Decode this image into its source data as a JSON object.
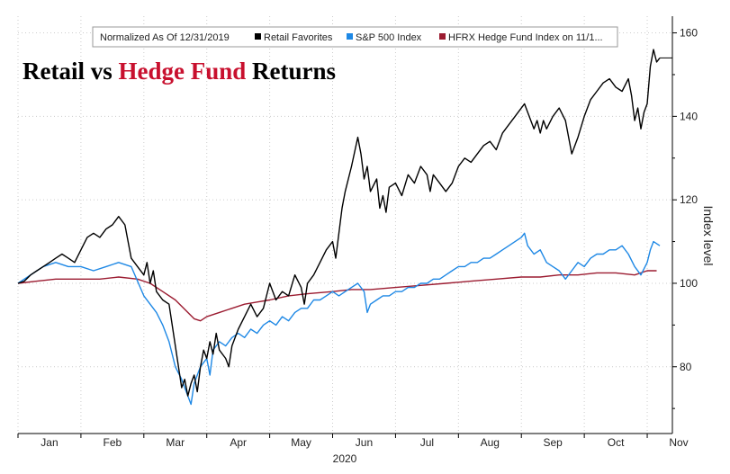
{
  "colors": {
    "retail": "#000000",
    "sp500": "#1e88e5",
    "hfrx": "#9b1b30",
    "title_accent": "#c8102e",
    "grid": "#cccccc"
  },
  "chart_data": {
    "type": "line",
    "title_parts": [
      {
        "text": "Retail vs ",
        "accent": false
      },
      {
        "text": "Hedge Fund",
        "accent": true
      },
      {
        "text": " Returns",
        "accent": false
      }
    ],
    "legend": {
      "note": "Normalized As Of 12/31/2019",
      "placement": "top-center"
    },
    "xlabel": "2020",
    "ylabel": "Index level",
    "x_range": [
      0,
      10.4
    ],
    "ylim": [
      64,
      164
    ],
    "y_ticks": [
      80,
      100,
      120,
      140,
      160
    ],
    "month_ticks": [
      {
        "label": "Jan",
        "x": 0.5
      },
      {
        "label": "Feb",
        "x": 1.5
      },
      {
        "label": "Mar",
        "x": 2.5
      },
      {
        "label": "Apr",
        "x": 3.5
      },
      {
        "label": "May",
        "x": 4.5
      },
      {
        "label": "Jun",
        "x": 5.5
      },
      {
        "label": "Jul",
        "x": 6.5
      },
      {
        "label": "Aug",
        "x": 7.5
      },
      {
        "label": "Sep",
        "x": 8.5
      },
      {
        "label": "Oct",
        "x": 9.5
      },
      {
        "label": "Nov",
        "x": 10.5
      }
    ],
    "grid": true,
    "series": [
      {
        "name": "Retail Favorites",
        "color_key": "retail",
        "last_value_marker": 154,
        "points": [
          [
            0,
            100
          ],
          [
            0.1,
            100.5
          ],
          [
            0.2,
            102
          ],
          [
            0.3,
            103
          ],
          [
            0.4,
            104
          ],
          [
            0.5,
            105
          ],
          [
            0.6,
            106
          ],
          [
            0.7,
            107
          ],
          [
            0.8,
            106
          ],
          [
            0.9,
            105
          ],
          [
            1.0,
            108
          ],
          [
            1.1,
            111
          ],
          [
            1.2,
            112
          ],
          [
            1.3,
            111
          ],
          [
            1.4,
            113
          ],
          [
            1.5,
            114
          ],
          [
            1.6,
            116
          ],
          [
            1.7,
            114
          ],
          [
            1.75,
            110
          ],
          [
            1.8,
            106
          ],
          [
            1.9,
            104
          ],
          [
            2.0,
            102
          ],
          [
            2.05,
            105
          ],
          [
            2.1,
            100
          ],
          [
            2.15,
            103
          ],
          [
            2.2,
            98
          ],
          [
            2.3,
            96
          ],
          [
            2.4,
            95
          ],
          [
            2.45,
            90
          ],
          [
            2.5,
            85
          ],
          [
            2.55,
            80
          ],
          [
            2.6,
            75
          ],
          [
            2.65,
            77
          ],
          [
            2.7,
            73
          ],
          [
            2.75,
            76
          ],
          [
            2.8,
            78
          ],
          [
            2.85,
            74
          ],
          [
            2.9,
            80
          ],
          [
            2.95,
            84
          ],
          [
            3.0,
            82
          ],
          [
            3.05,
            86
          ],
          [
            3.1,
            83
          ],
          [
            3.15,
            88
          ],
          [
            3.2,
            84
          ],
          [
            3.3,
            82
          ],
          [
            3.35,
            80
          ],
          [
            3.4,
            85
          ],
          [
            3.5,
            89
          ],
          [
            3.6,
            92
          ],
          [
            3.7,
            95
          ],
          [
            3.8,
            92
          ],
          [
            3.9,
            94
          ],
          [
            4.0,
            100
          ],
          [
            4.1,
            96
          ],
          [
            4.2,
            98
          ],
          [
            4.3,
            97
          ],
          [
            4.4,
            102
          ],
          [
            4.5,
            99
          ],
          [
            4.55,
            95
          ],
          [
            4.6,
            100
          ],
          [
            4.7,
            102
          ],
          [
            4.8,
            105
          ],
          [
            4.9,
            108
          ],
          [
            5.0,
            110
          ],
          [
            5.05,
            106
          ],
          [
            5.1,
            112
          ],
          [
            5.15,
            118
          ],
          [
            5.2,
            122
          ],
          [
            5.3,
            128
          ],
          [
            5.4,
            135
          ],
          [
            5.45,
            131
          ],
          [
            5.5,
            125
          ],
          [
            5.55,
            128
          ],
          [
            5.6,
            122
          ],
          [
            5.7,
            125
          ],
          [
            5.75,
            118
          ],
          [
            5.8,
            121
          ],
          [
            5.85,
            117
          ],
          [
            5.9,
            123
          ],
          [
            6.0,
            124
          ],
          [
            6.1,
            121
          ],
          [
            6.2,
            126
          ],
          [
            6.3,
            124
          ],
          [
            6.4,
            128
          ],
          [
            6.5,
            126
          ],
          [
            6.55,
            122
          ],
          [
            6.6,
            126
          ],
          [
            6.7,
            124
          ],
          [
            6.8,
            122
          ],
          [
            6.9,
            124
          ],
          [
            7.0,
            128
          ],
          [
            7.1,
            130
          ],
          [
            7.2,
            129
          ],
          [
            7.3,
            131
          ],
          [
            7.4,
            133
          ],
          [
            7.5,
            134
          ],
          [
            7.6,
            132
          ],
          [
            7.7,
            136
          ],
          [
            7.8,
            138
          ],
          [
            7.9,
            140
          ],
          [
            8.0,
            142
          ],
          [
            8.05,
            143
          ],
          [
            8.1,
            141
          ],
          [
            8.2,
            137
          ],
          [
            8.25,
            139
          ],
          [
            8.3,
            136
          ],
          [
            8.35,
            139
          ],
          [
            8.4,
            137
          ],
          [
            8.5,
            140
          ],
          [
            8.6,
            142
          ],
          [
            8.7,
            139
          ],
          [
            8.8,
            131
          ],
          [
            8.9,
            135
          ],
          [
            9.0,
            140
          ],
          [
            9.1,
            144
          ],
          [
            9.2,
            146
          ],
          [
            9.3,
            148
          ],
          [
            9.4,
            149
          ],
          [
            9.5,
            147
          ],
          [
            9.6,
            146
          ],
          [
            9.7,
            149
          ],
          [
            9.75,
            145
          ],
          [
            9.8,
            139
          ],
          [
            9.85,
            142
          ],
          [
            9.9,
            137
          ],
          [
            9.95,
            141
          ],
          [
            10.0,
            143
          ],
          [
            10.05,
            152
          ],
          [
            10.1,
            156
          ],
          [
            10.15,
            153
          ],
          [
            10.2,
            154
          ]
        ]
      },
      {
        "name": "S&P 500 Index",
        "color_key": "sp500",
        "last_value_marker": null,
        "points": [
          [
            0,
            100
          ],
          [
            0.2,
            102
          ],
          [
            0.4,
            104
          ],
          [
            0.6,
            105
          ],
          [
            0.8,
            104
          ],
          [
            1.0,
            104
          ],
          [
            1.2,
            103
          ],
          [
            1.4,
            104
          ],
          [
            1.6,
            105
          ],
          [
            1.8,
            104
          ],
          [
            2.0,
            97
          ],
          [
            2.1,
            95
          ],
          [
            2.2,
            93
          ],
          [
            2.3,
            90
          ],
          [
            2.4,
            86
          ],
          [
            2.5,
            80
          ],
          [
            2.6,
            77
          ],
          [
            2.7,
            73
          ],
          [
            2.75,
            71
          ],
          [
            2.8,
            76
          ],
          [
            2.85,
            78
          ],
          [
            2.9,
            80
          ],
          [
            3.0,
            82
          ],
          [
            3.05,
            78
          ],
          [
            3.1,
            84
          ],
          [
            3.2,
            86
          ],
          [
            3.3,
            85
          ],
          [
            3.4,
            87
          ],
          [
            3.5,
            88
          ],
          [
            3.6,
            87
          ],
          [
            3.7,
            89
          ],
          [
            3.8,
            88
          ],
          [
            3.9,
            90
          ],
          [
            4.0,
            91
          ],
          [
            4.1,
            90
          ],
          [
            4.2,
            92
          ],
          [
            4.3,
            91
          ],
          [
            4.4,
            93
          ],
          [
            4.5,
            94
          ],
          [
            4.6,
            94
          ],
          [
            4.7,
            96
          ],
          [
            4.8,
            96
          ],
          [
            4.9,
            97
          ],
          [
            5.0,
            98
          ],
          [
            5.1,
            97
          ],
          [
            5.2,
            98
          ],
          [
            5.3,
            99
          ],
          [
            5.4,
            100
          ],
          [
            5.5,
            98
          ],
          [
            5.55,
            93
          ],
          [
            5.6,
            95
          ],
          [
            5.7,
            96
          ],
          [
            5.8,
            97
          ],
          [
            5.9,
            97
          ],
          [
            6.0,
            98
          ],
          [
            6.1,
            98
          ],
          [
            6.2,
            99
          ],
          [
            6.3,
            99
          ],
          [
            6.4,
            100
          ],
          [
            6.5,
            100
          ],
          [
            6.6,
            101
          ],
          [
            6.7,
            101
          ],
          [
            6.8,
            102
          ],
          [
            6.9,
            103
          ],
          [
            7.0,
            104
          ],
          [
            7.1,
            104
          ],
          [
            7.2,
            105
          ],
          [
            7.3,
            105
          ],
          [
            7.4,
            106
          ],
          [
            7.5,
            106
          ],
          [
            7.6,
            107
          ],
          [
            7.7,
            108
          ],
          [
            7.8,
            109
          ],
          [
            7.9,
            110
          ],
          [
            8.0,
            111
          ],
          [
            8.05,
            112
          ],
          [
            8.1,
            109
          ],
          [
            8.2,
            107
          ],
          [
            8.3,
            108
          ],
          [
            8.4,
            105
          ],
          [
            8.5,
            104
          ],
          [
            8.6,
            103
          ],
          [
            8.7,
            101
          ],
          [
            8.8,
            103
          ],
          [
            8.9,
            105
          ],
          [
            9.0,
            104
          ],
          [
            9.1,
            106
          ],
          [
            9.2,
            107
          ],
          [
            9.3,
            107
          ],
          [
            9.4,
            108
          ],
          [
            9.5,
            108
          ],
          [
            9.6,
            109
          ],
          [
            9.7,
            107
          ],
          [
            9.8,
            104
          ],
          [
            9.9,
            102
          ],
          [
            10.0,
            105
          ],
          [
            10.05,
            108
          ],
          [
            10.1,
            110
          ],
          [
            10.2,
            109
          ]
        ]
      },
      {
        "name": "HFRX Hedge Fund Index on 11/1...",
        "color_key": "hfrx",
        "last_value_marker": null,
        "points": [
          [
            0,
            100
          ],
          [
            0.3,
            100.5
          ],
          [
            0.6,
            101
          ],
          [
            1.0,
            101
          ],
          [
            1.3,
            101
          ],
          [
            1.6,
            101.5
          ],
          [
            1.9,
            101
          ],
          [
            2.1,
            100
          ],
          [
            2.3,
            98
          ],
          [
            2.5,
            96
          ],
          [
            2.7,
            93
          ],
          [
            2.8,
            91.5
          ],
          [
            2.9,
            91
          ],
          [
            3.0,
            92
          ],
          [
            3.2,
            93
          ],
          [
            3.4,
            94
          ],
          [
            3.6,
            95
          ],
          [
            3.8,
            95.5
          ],
          [
            4.0,
            96
          ],
          [
            4.3,
            97
          ],
          [
            4.6,
            97.5
          ],
          [
            5.0,
            98
          ],
          [
            5.3,
            98.5
          ],
          [
            5.6,
            98.5
          ],
          [
            6.0,
            99
          ],
          [
            6.4,
            99.5
          ],
          [
            6.8,
            100
          ],
          [
            7.2,
            100.5
          ],
          [
            7.6,
            101
          ],
          [
            8.0,
            101.5
          ],
          [
            8.3,
            101.5
          ],
          [
            8.6,
            102
          ],
          [
            8.9,
            102
          ],
          [
            9.2,
            102.5
          ],
          [
            9.5,
            102.5
          ],
          [
            9.8,
            102
          ],
          [
            10.0,
            103
          ],
          [
            10.15,
            103
          ]
        ]
      }
    ]
  }
}
